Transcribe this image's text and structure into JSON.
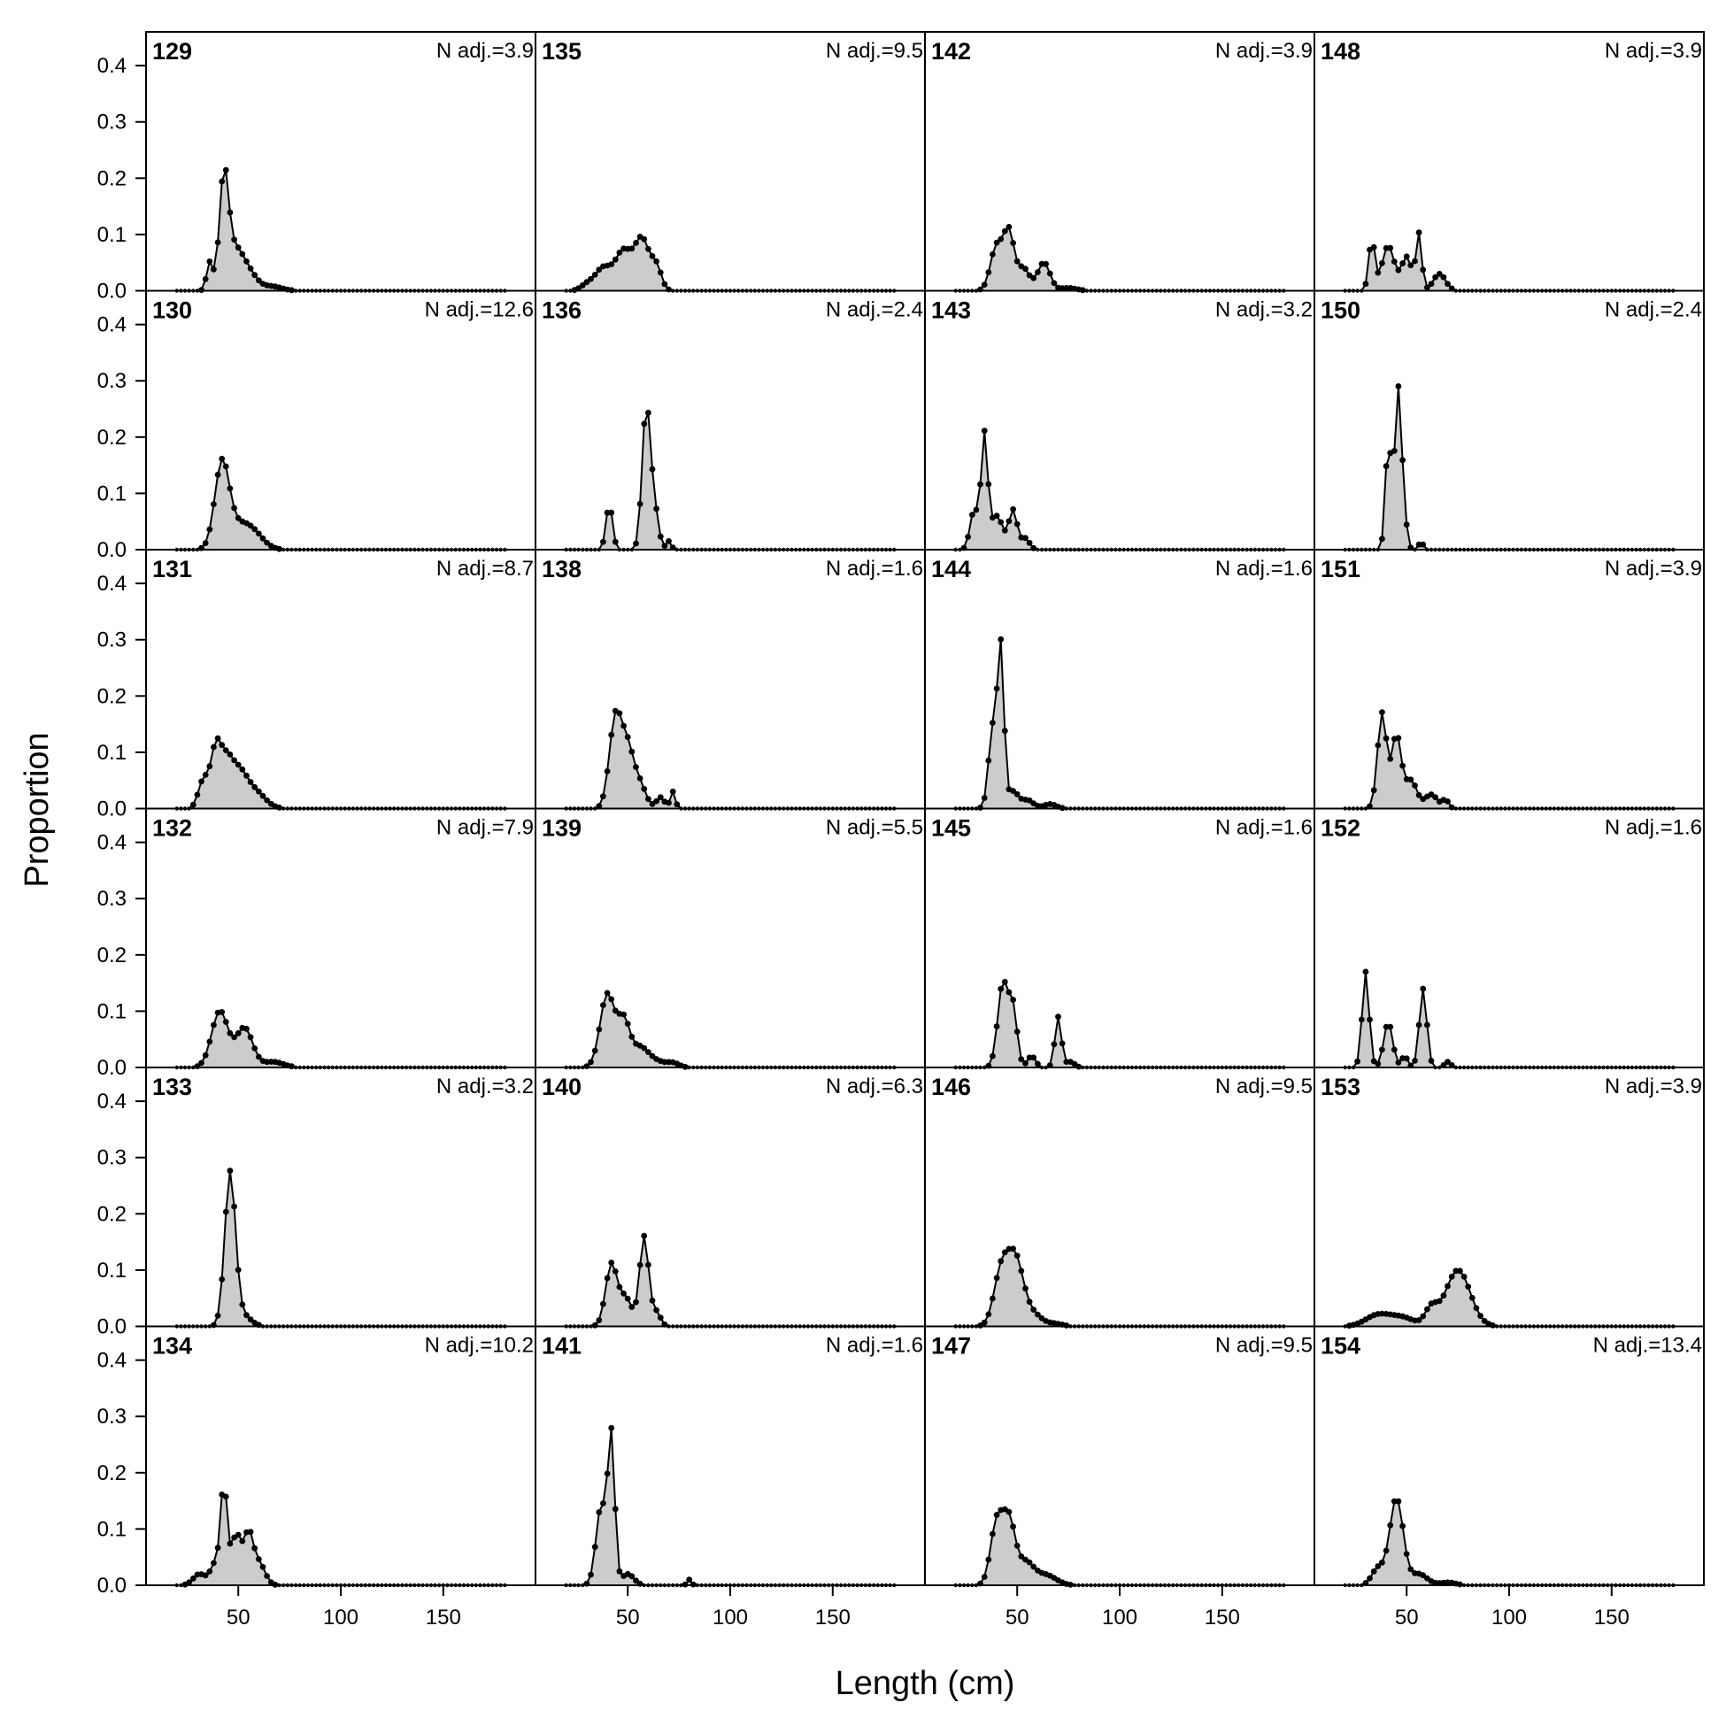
{
  "chart_data": {
    "type": "area",
    "xlabel": "Length (cm)",
    "ylabel": "Proportion",
    "xlim": [
      5,
      195
    ],
    "ylim": [
      0,
      0.46
    ],
    "xticks": [
      50,
      100,
      150
    ],
    "yticks": [
      0.0,
      0.1,
      0.2,
      0.3,
      0.4
    ],
    "ytick_labels": [
      "0.0",
      "0.1",
      "0.2",
      "0.3",
      "0.4"
    ],
    "bin_start": 20,
    "bin_width": 2,
    "bin_end": 180,
    "grid": false,
    "colors": {
      "fill": "#cccccc",
      "line": "#000000",
      "points": "#000000"
    },
    "panels": [
      {
        "id": "129",
        "n_adj": "N adj.=3.9",
        "peaks": [
          [
            36,
            0.05,
            1.5
          ],
          [
            43,
            0.19,
            2.2
          ],
          [
            48,
            0.07,
            4
          ],
          [
            55,
            0.03,
            4
          ],
          [
            66,
            0.008,
            5
          ]
        ]
      },
      {
        "id": "130",
        "n_adj": "N adj.=12.6",
        "peaks": [
          [
            42,
            0.145,
            3.5
          ],
          [
            50,
            0.04,
            6
          ],
          [
            58,
            0.02,
            5
          ]
        ]
      },
      {
        "id": "131",
        "n_adj": "N adj.=8.7",
        "peaks": [
          [
            33,
            0.05,
            2.5
          ],
          [
            39,
            0.1,
            2.5
          ],
          [
            44,
            0.07,
            3
          ],
          [
            50,
            0.06,
            4
          ],
          [
            58,
            0.03,
            5
          ]
        ]
      },
      {
        "id": "132",
        "n_adj": "N adj.=7.9",
        "peaks": [
          [
            41,
            0.1,
            4
          ],
          [
            53,
            0.07,
            4
          ],
          [
            67,
            0.01,
            5
          ]
        ]
      },
      {
        "id": "133",
        "n_adj": "N adj.=3.2",
        "peaks": [
          [
            46,
            0.27,
            2.6
          ],
          [
            52,
            0.02,
            4
          ]
        ]
      },
      {
        "id": "134",
        "n_adj": "N adj.=10.2",
        "peaks": [
          [
            31,
            0.02,
            3
          ],
          [
            39,
            0.04,
            2.5
          ],
          [
            43,
            0.17,
            1.6
          ],
          [
            49,
            0.09,
            2.5
          ],
          [
            55,
            0.085,
            2.2
          ],
          [
            60,
            0.04,
            3
          ]
        ]
      },
      {
        "id": "135",
        "n_adj": "N adj.=9.5",
        "peaks": [
          [
            30,
            0.01,
            3
          ],
          [
            38,
            0.04,
            4
          ],
          [
            48,
            0.07,
            4
          ],
          [
            57,
            0.09,
            3.5
          ],
          [
            64,
            0.04,
            2.5
          ]
        ]
      },
      {
        "id": "136",
        "n_adj": "N adj.=2.4",
        "peaks": [
          [
            41,
            0.08,
            1.6
          ],
          [
            59,
            0.25,
            2
          ],
          [
            63,
            0.07,
            2
          ],
          [
            70,
            0.015,
            1.2
          ]
        ]
      },
      {
        "id": "138",
        "n_adj": "N adj.=1.6",
        "peaks": [
          [
            44,
            0.16,
            3
          ],
          [
            50,
            0.1,
            3
          ],
          [
            56,
            0.04,
            3
          ],
          [
            66,
            0.02,
            2
          ],
          [
            72,
            0.03,
            1.2
          ]
        ]
      },
      {
        "id": "139",
        "n_adj": "N adj.=5.5",
        "peaks": [
          [
            40,
            0.13,
            3.5
          ],
          [
            48,
            0.08,
            3
          ],
          [
            56,
            0.035,
            4
          ],
          [
            64,
            0.01,
            4
          ],
          [
            72,
            0.008,
            3
          ]
        ]
      },
      {
        "id": "140",
        "n_adj": "N adj.=6.3",
        "peaks": [
          [
            42,
            0.11,
            2.8
          ],
          [
            49,
            0.05,
            3
          ],
          [
            58,
            0.16,
            2.2
          ],
          [
            64,
            0.025,
            2
          ]
        ]
      },
      {
        "id": "141",
        "n_adj": "N adj.=1.6",
        "peaks": [
          [
            37,
            0.14,
            2.5
          ],
          [
            42,
            0.26,
            1.7
          ],
          [
            50,
            0.02,
            3
          ],
          [
            80,
            0.01,
            1
          ]
        ]
      },
      {
        "id": "142",
        "n_adj": "N adj.=3.9",
        "peaks": [
          [
            40,
            0.08,
            3
          ],
          [
            46,
            0.1,
            2.5
          ],
          [
            53,
            0.04,
            3
          ],
          [
            63,
            0.05,
            3
          ],
          [
            75,
            0.005,
            4
          ]
        ]
      },
      {
        "id": "143",
        "n_adj": "N adj.=3.2",
        "peaks": [
          [
            29,
            0.07,
            2
          ],
          [
            34,
            0.2,
            1.6
          ],
          [
            40,
            0.06,
            3
          ],
          [
            48,
            0.07,
            2
          ],
          [
            54,
            0.02,
            2
          ]
        ]
      },
      {
        "id": "144",
        "n_adj": "N adj.=1.6",
        "peaks": [
          [
            38,
            0.14,
            2
          ],
          [
            42,
            0.28,
            1.6
          ],
          [
            48,
            0.03,
            2.5
          ],
          [
            55,
            0.015,
            3
          ],
          [
            66,
            0.008,
            3
          ]
        ]
      },
      {
        "id": "145",
        "n_adj": "N adj.=1.6",
        "peaks": [
          [
            43,
            0.15,
            2.5
          ],
          [
            48,
            0.1,
            2
          ],
          [
            57,
            0.02,
            2
          ],
          [
            70,
            0.09,
            1.6
          ],
          [
            76,
            0.01,
            2
          ]
        ]
      },
      {
        "id": "146",
        "n_adj": "N adj.=9.5",
        "peaks": [
          [
            42,
            0.09,
            3.5
          ],
          [
            49,
            0.12,
            4
          ],
          [
            58,
            0.02,
            4
          ],
          [
            68,
            0.005,
            4
          ]
        ]
      },
      {
        "id": "147",
        "n_adj": "N adj.=9.5",
        "peaks": [
          [
            40,
            0.11,
            3
          ],
          [
            46,
            0.11,
            3
          ],
          [
            54,
            0.04,
            4
          ],
          [
            64,
            0.018,
            5
          ]
        ]
      },
      {
        "id": "148",
        "n_adj": "N adj.=3.9",
        "peaks": [
          [
            33,
            0.09,
            1.5
          ],
          [
            41,
            0.08,
            3
          ],
          [
            50,
            0.06,
            2.5
          ],
          [
            56,
            0.1,
            1.4
          ],
          [
            66,
            0.03,
            3
          ]
        ]
      },
      {
        "id": "150",
        "n_adj": "N adj.=2.4",
        "peaks": [
          [
            41,
            0.19,
            1.4
          ],
          [
            46,
            0.29,
            1.8
          ],
          [
            50,
            0.02,
            1
          ],
          [
            57,
            0.015,
            1
          ]
        ]
      },
      {
        "id": "151",
        "n_adj": "N adj.=3.9",
        "peaks": [
          [
            38,
            0.17,
            2.2
          ],
          [
            45,
            0.13,
            2.3
          ],
          [
            52,
            0.05,
            3
          ],
          [
            62,
            0.025,
            3
          ],
          [
            69,
            0.015,
            1.5
          ]
        ]
      },
      {
        "id": "152",
        "n_adj": "N adj.=1.6",
        "peaks": [
          [
            30,
            0.17,
            1.7
          ],
          [
            41,
            0.08,
            2.2
          ],
          [
            49,
            0.02,
            1.5
          ],
          [
            58,
            0.14,
            1.8
          ],
          [
            70,
            0.01,
            1.5
          ]
        ]
      },
      {
        "id": "153",
        "n_adj": "N adj.=3.9",
        "peaks": [
          [
            36,
            0.02,
            6
          ],
          [
            48,
            0.015,
            6
          ],
          [
            62,
            0.03,
            3
          ],
          [
            75,
            0.1,
            6
          ]
        ]
      },
      {
        "id": "154",
        "n_adj": "N adj.=13.4",
        "peaks": [
          [
            36,
            0.03,
            3
          ],
          [
            45,
            0.155,
            3.3
          ],
          [
            56,
            0.02,
            4
          ],
          [
            70,
            0.005,
            4
          ]
        ]
      }
    ]
  }
}
